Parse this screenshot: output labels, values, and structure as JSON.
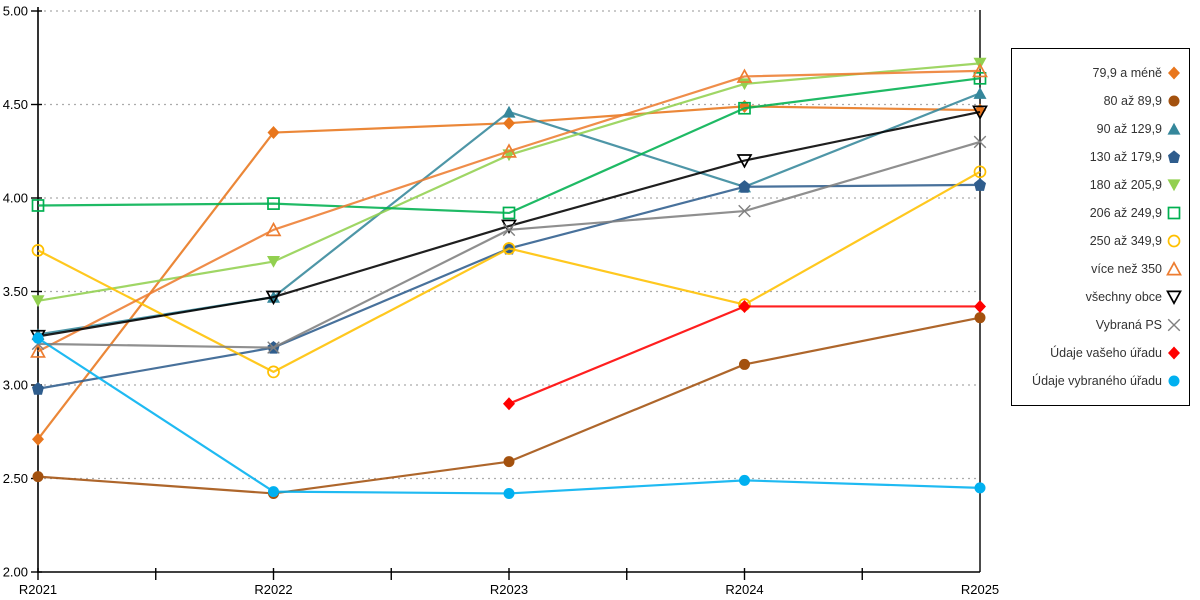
{
  "chart_data": {
    "type": "line",
    "title": "",
    "xlabel": "",
    "ylabel": "",
    "categories": [
      "R2021",
      "R2022",
      "R2023",
      "R2024",
      "R2025"
    ],
    "ylim": [
      2.0,
      5.0
    ],
    "ytick_step": 0.5,
    "ytick_labels": [
      "2.00",
      "2.50",
      "3.00",
      "3.50",
      "4.00",
      "4.50",
      "5.00"
    ],
    "grid": "horizontal-dotted",
    "legend_position": "right-outside-box",
    "axis_color": "#000000",
    "grid_color": "#ababab",
    "series": [
      {
        "name": "79,9 a méně",
        "marker": "diamond",
        "fill": "solid",
        "color": "#E8761D",
        "values": [
          2.71,
          4.35,
          4.4,
          4.49,
          4.47
        ]
      },
      {
        "name": "80 až 89,9",
        "marker": "circle",
        "fill": "solid",
        "color": "#A3510E",
        "values": [
          2.51,
          2.42,
          2.59,
          3.11,
          3.36
        ]
      },
      {
        "name": "90 až 129,9",
        "marker": "triangle-up",
        "fill": "solid",
        "color": "#35879B",
        "values": [
          3.27,
          3.47,
          4.46,
          4.06,
          4.56
        ]
      },
      {
        "name": "130 až 179,9",
        "marker": "pentagon",
        "fill": "solid",
        "color": "#2F5D8D",
        "values": [
          2.98,
          3.2,
          3.73,
          4.06,
          4.07
        ]
      },
      {
        "name": "180 až 205,9",
        "marker": "triangle-down",
        "fill": "solid",
        "color": "#92D050",
        "values": [
          3.45,
          3.66,
          4.23,
          4.61,
          4.72
        ]
      },
      {
        "name": "206 až 249,9",
        "marker": "square",
        "fill": "open",
        "color": "#00B050",
        "values": [
          3.96,
          3.97,
          3.92,
          4.48,
          4.64
        ]
      },
      {
        "name": "250 až 349,9",
        "marker": "circle",
        "fill": "open",
        "color": "#FFC000",
        "values": [
          3.72,
          3.07,
          3.73,
          3.43,
          4.14
        ]
      },
      {
        "name": "více než 350",
        "marker": "triangle-up",
        "fill": "open",
        "color": "#ED7D31",
        "values": [
          3.18,
          3.83,
          4.25,
          4.65,
          4.68
        ]
      },
      {
        "name": "všechny obce",
        "marker": "triangle-down",
        "fill": "open",
        "color": "#000000",
        "values": [
          3.26,
          3.47,
          3.85,
          4.2,
          4.46
        ]
      },
      {
        "name": "Vybraná PS",
        "marker": "x",
        "fill": "open",
        "color": "#808080",
        "values": [
          3.22,
          3.2,
          3.83,
          3.93,
          4.3
        ]
      },
      {
        "name": "Údaje vašeho úřadu",
        "marker": "diamond",
        "fill": "solid",
        "color": "#FF0000",
        "values": [
          null,
          null,
          2.9,
          3.42,
          3.42
        ]
      },
      {
        "name": "Údaje vybraného úřadu",
        "marker": "circle",
        "fill": "solid",
        "color": "#00B0F0",
        "values": [
          3.25,
          2.43,
          2.42,
          2.49,
          2.45
        ]
      }
    ]
  }
}
